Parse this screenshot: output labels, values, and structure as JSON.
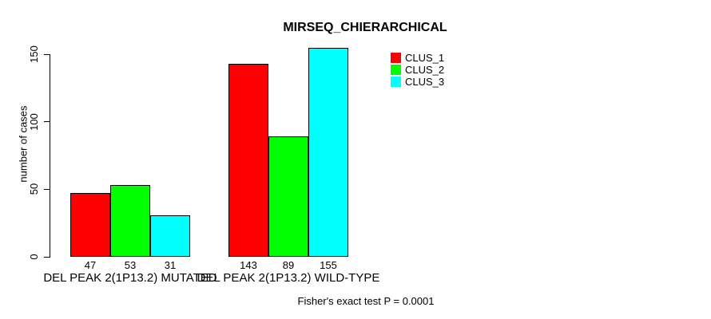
{
  "title": "MIRSEQ_CHIERARCHICAL",
  "footer": {
    "note": "Fisher's exact test P = 0.0001"
  },
  "chart_data": {
    "type": "bar",
    "title": "MIRSEQ_CHIERARCHICAL",
    "xlabel": "",
    "ylabel": "number of cases",
    "ylim": [
      0,
      150
    ],
    "yticks": [
      0,
      50,
      100,
      150
    ],
    "grid": false,
    "legend_position": "top-right",
    "bar_value_labels_shown": true,
    "categories": [
      "DEL PEAK 2(1P13.2) MUTATED",
      "DEL PEAK 2(1P13.2) WILD-TYPE"
    ],
    "series": [
      {
        "name": "CLUS_1",
        "color": "#ff0000",
        "values": [
          47,
          143
        ]
      },
      {
        "name": "CLUS_2",
        "color": "#00ff00",
        "values": [
          53,
          89
        ]
      },
      {
        "name": "CLUS_3",
        "color": "#00ffff",
        "values": [
          31,
          155
        ]
      }
    ],
    "annotation": "Fisher's exact test P = 0.0001"
  }
}
